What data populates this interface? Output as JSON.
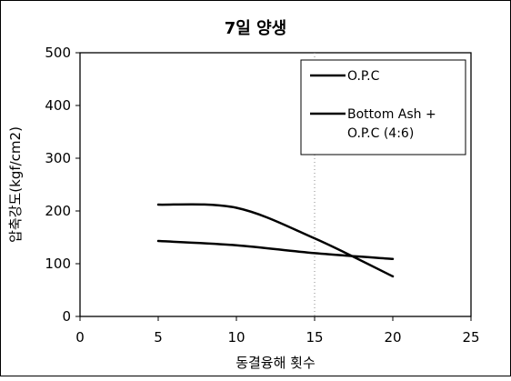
{
  "chart_data": {
    "type": "line",
    "title": "7일 양생",
    "xlabel": "동결융해 횟수",
    "ylabel": "압축강도(kgf/cm2)",
    "xlim": [
      0,
      25
    ],
    "ylim": [
      0,
      500
    ],
    "xticks": [
      0,
      5,
      10,
      15,
      20,
      25
    ],
    "yticks": [
      0,
      100,
      200,
      300,
      400,
      500
    ],
    "grid": false,
    "legend_position": "top-right",
    "series": [
      {
        "name": "O.P.C",
        "color": "#000000",
        "x": [
          5,
          10,
          15,
          20
        ],
        "y": [
          212,
          206,
          148,
          76
        ]
      },
      {
        "name": "Bottom Ash + O.P.C (4:6)",
        "legend_lines": [
          "Bottom Ash +",
          "O.P.C (4:6)"
        ],
        "color": "#000000",
        "x": [
          5,
          10,
          15,
          20
        ],
        "y": [
          143,
          135,
          120,
          109
        ]
      }
    ]
  }
}
